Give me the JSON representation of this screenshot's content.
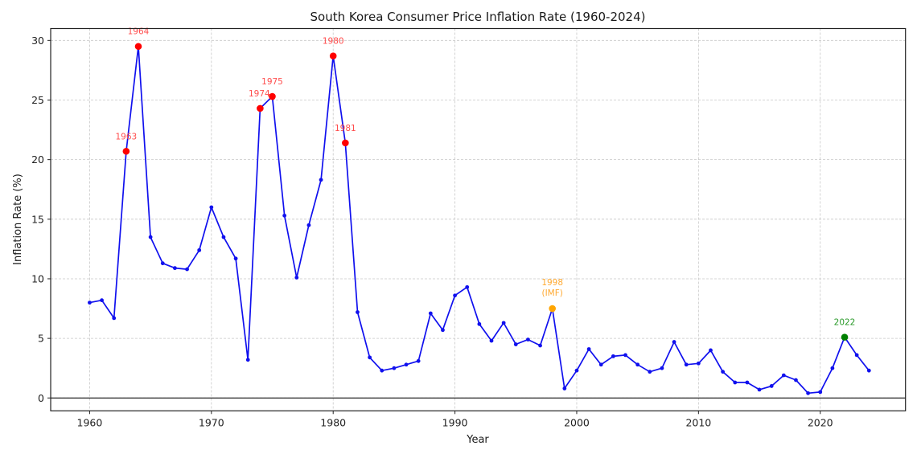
{
  "chart_data": {
    "type": "line",
    "title": "South Korea Consumer Price Inflation Rate (1960-2024)",
    "xlabel": "Year",
    "ylabel": "Inflation Rate (%)",
    "xlim": [
      1956.8,
      2027.0
    ],
    "ylim": [
      -1.08,
      31.0
    ],
    "grid": true,
    "xticks": [
      1960,
      1970,
      1980,
      1990,
      2000,
      2010,
      2020
    ],
    "xtick_labels": [
      "1960",
      "1970",
      "1980",
      "1990",
      "2000",
      "2010",
      "2020"
    ],
    "yticks": [
      0,
      5,
      10,
      15,
      20,
      25,
      30
    ],
    "ytick_labels": [
      "0",
      "5",
      "10",
      "15",
      "20",
      "25",
      "30"
    ],
    "zero_line": true,
    "line_color": "#1010ee",
    "series": [
      {
        "name": "Inflation Rate",
        "x": [
          1960,
          1961,
          1962,
          1963,
          1964,
          1965,
          1966,
          1967,
          1968,
          1969,
          1970,
          1971,
          1972,
          1973,
          1974,
          1975,
          1976,
          1977,
          1978,
          1979,
          1980,
          1981,
          1982,
          1983,
          1984,
          1985,
          1986,
          1987,
          1988,
          1989,
          1990,
          1991,
          1992,
          1993,
          1994,
          1995,
          1996,
          1997,
          1998,
          1999,
          2000,
          2001,
          2002,
          2003,
          2004,
          2005,
          2006,
          2007,
          2008,
          2009,
          2010,
          2011,
          2012,
          2013,
          2014,
          2015,
          2016,
          2017,
          2018,
          2019,
          2020,
          2021,
          2022,
          2023,
          2024
        ],
        "values": [
          8.0,
          8.2,
          6.7,
          20.7,
          29.5,
          13.5,
          11.3,
          10.9,
          10.8,
          12.4,
          16.0,
          13.5,
          11.7,
          3.2,
          24.3,
          25.3,
          15.3,
          10.1,
          14.5,
          18.3,
          28.7,
          21.4,
          7.2,
          3.4,
          2.3,
          2.5,
          2.8,
          3.1,
          7.1,
          5.7,
          8.6,
          9.3,
          6.2,
          4.8,
          6.3,
          4.5,
          4.9,
          4.4,
          7.5,
          0.8,
          2.3,
          4.1,
          2.8,
          3.5,
          3.6,
          2.8,
          2.2,
          2.5,
          4.7,
          2.8,
          2.9,
          4.0,
          2.2,
          1.3,
          1.3,
          0.7,
          1.0,
          1.9,
          1.5,
          0.4,
          0.5,
          2.5,
          5.1,
          3.6,
          2.3
        ]
      }
    ],
    "highlights": [
      {
        "year": 1963,
        "value": 20.7,
        "label": "1963",
        "color": "#ff0000",
        "label_color": "#ff4d4d"
      },
      {
        "year": 1964,
        "value": 29.5,
        "label": "1964",
        "color": "#ff0000",
        "label_color": "#ff4d4d"
      },
      {
        "year": 1974,
        "value": 24.3,
        "label": "1974",
        "color": "#ff0000",
        "label_color": "#ff4d4d"
      },
      {
        "year": 1975,
        "value": 25.3,
        "label": "1975",
        "color": "#ff0000",
        "label_color": "#ff4d4d"
      },
      {
        "year": 1980,
        "value": 28.7,
        "label": "1980",
        "color": "#ff0000",
        "label_color": "#ff4d4d"
      },
      {
        "year": 1981,
        "value": 21.4,
        "label": "1981",
        "color": "#ff0000",
        "label_color": "#ff4d4d"
      },
      {
        "year": 1998,
        "value": 7.5,
        "label": "1998",
        "label2": "(IMF)",
        "color": "#ffa500",
        "label_color": "#ffaa33"
      },
      {
        "year": 2022,
        "value": 5.1,
        "label": "2022",
        "color": "#008000",
        "label_color": "#2a9a2a"
      }
    ]
  }
}
